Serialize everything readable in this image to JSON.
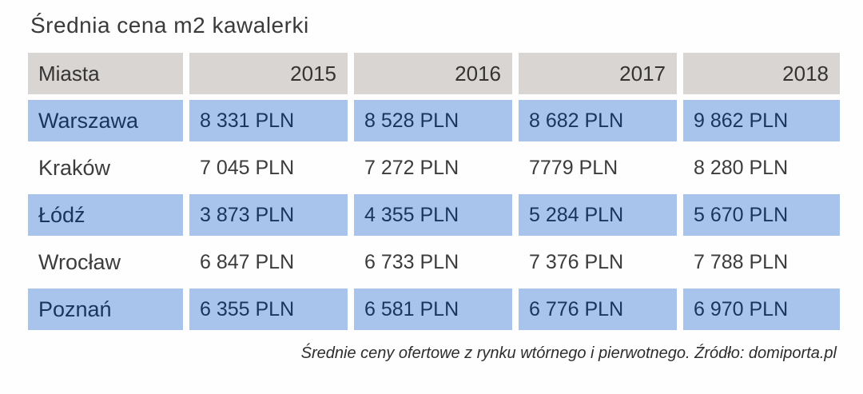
{
  "title": "Średnia cena m2 kawalerki",
  "table": {
    "header": {
      "col0": "Miasta",
      "col1": "2015",
      "col2": "2016",
      "col3": "2017",
      "col4": "2018"
    },
    "rows": [
      {
        "city": "Warszawa",
        "values": [
          "8 331 PLN",
          "8 528 PLN",
          "8 682 PLN",
          "9 862 PLN"
        ],
        "highlighted": true
      },
      {
        "city": "Kraków",
        "values": [
          "7 045 PLN",
          "7 272 PLN",
          "7779 PLN",
          "8 280 PLN"
        ],
        "highlighted": false
      },
      {
        "city": "Łódź",
        "values": [
          "3 873 PLN",
          "4 355 PLN",
          "5 284 PLN",
          "5 670 PLN"
        ],
        "highlighted": true
      },
      {
        "city": "Wrocław",
        "values": [
          "6 847 PLN",
          "6 733 PLN",
          "7 376 PLN",
          "7 788 PLN"
        ],
        "highlighted": false
      },
      {
        "city": "Poznań",
        "values": [
          "6 355 PLN",
          "6 581 PLN",
          "6 776 PLN",
          "6 970 PLN"
        ],
        "highlighted": true
      }
    ]
  },
  "footnote": "Średnie ceny ofertowe z rynku wtórnego i pierwotnego. Źródło: domiporta.pl",
  "colors": {
    "header_bg": "#d8d5d2",
    "highlight_row_bg": "#a8c4ec",
    "highlight_text": "#17355f",
    "plain_text": "#3c3c3c",
    "title_text": "#3a3a3a"
  },
  "chart_data": {
    "type": "table",
    "title": "Średnia cena m2 kawalerki",
    "categories": [
      "2015",
      "2016",
      "2017",
      "2018"
    ],
    "row_header_label": "Miasta",
    "series": [
      {
        "name": "Warszawa",
        "values": [
          8331,
          8528,
          8682,
          9862
        ]
      },
      {
        "name": "Kraków",
        "values": [
          7045,
          7272,
          7779,
          8280
        ]
      },
      {
        "name": "Łódź",
        "values": [
          3873,
          4355,
          5284,
          5670
        ]
      },
      {
        "name": "Wrocław",
        "values": [
          6847,
          6733,
          7376,
          7788
        ]
      },
      {
        "name": "Poznań",
        "values": [
          6355,
          6581,
          6776,
          6970
        ]
      }
    ],
    "unit": "PLN",
    "footnote": "Średnie ceny ofertowe z rynku wtórnego i pierwotnego. Źródło: domiporta.pl",
    "layout": {
      "highlighted_rows": [
        "Warszawa",
        "Łódź",
        "Poznań"
      ],
      "grid": false,
      "legend_position": "none"
    }
  }
}
